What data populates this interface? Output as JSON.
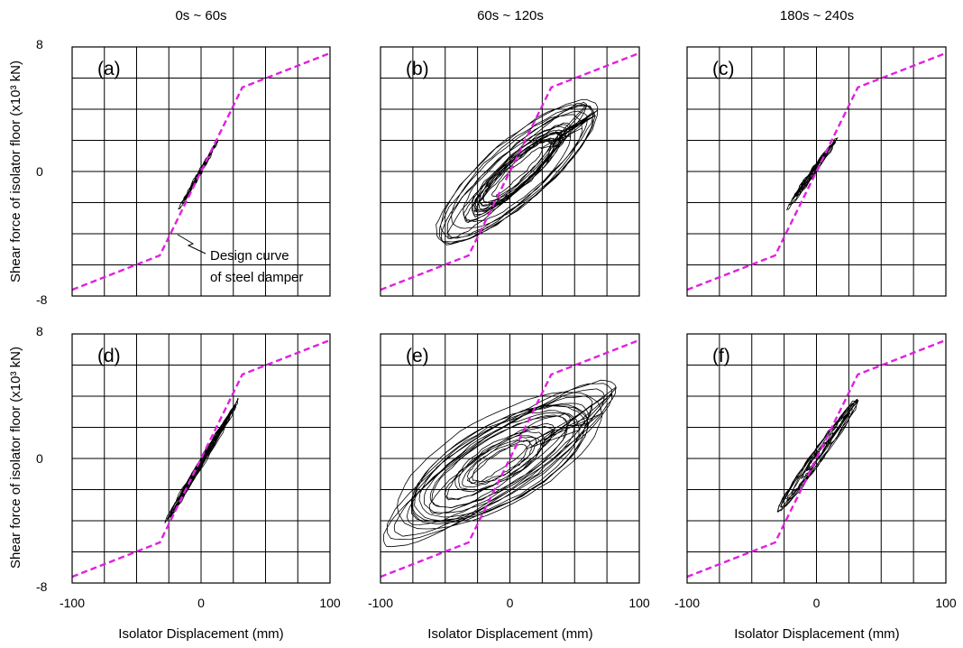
{
  "figure": {
    "column_titles": [
      "0s ~ 60s",
      "60s ~ 120s",
      "180s ~ 240s"
    ],
    "xlabel": "Isolator Displacement (mm)",
    "ylabel": "Shear force of isolator floor (x10³ kN)",
    "annotation": [
      "Design curve",
      "of steel damper"
    ],
    "design_color": "#e020e0"
  },
  "chart_data": [
    {
      "id": "a",
      "label": "(a)",
      "type": "line",
      "xlim": [
        -100,
        100
      ],
      "ylim": [
        -8,
        8
      ],
      "xticks": [
        -100,
        0,
        100
      ],
      "yticks": [
        -8,
        0,
        8
      ],
      "grid": true,
      "design_curve": {
        "x": [
          -100,
          -32,
          32,
          100
        ],
        "y": [
          -7.6,
          -5.4,
          5.4,
          7.6
        ]
      },
      "hysteresis": {
        "dmin": -17,
        "dmax": 13,
        "fmin": -2.6,
        "fmax": 2.1,
        "cycles": 8,
        "width": 0.06
      }
    },
    {
      "id": "b",
      "label": "(b)",
      "type": "line",
      "xlim": [
        -100,
        100
      ],
      "ylim": [
        -8,
        8
      ],
      "xticks": [
        -100,
        0,
        100
      ],
      "yticks": [
        -8,
        0,
        8
      ],
      "grid": true,
      "design_curve": {
        "x": [
          -100,
          -32,
          32,
          100
        ],
        "y": [
          -7.6,
          -5.4,
          5.4,
          7.6
        ]
      },
      "hysteresis": {
        "dmin": -57,
        "dmax": 68,
        "fmin": -6.4,
        "fmax": 6.3,
        "cycles": 22,
        "width": 0.35
      }
    },
    {
      "id": "c",
      "label": "(c)",
      "type": "line",
      "xlim": [
        -100,
        100
      ],
      "ylim": [
        -8,
        8
      ],
      "xticks": [
        -100,
        0,
        100
      ],
      "yticks": [
        -8,
        0,
        8
      ],
      "grid": true,
      "design_curve": {
        "x": [
          -100,
          -32,
          32,
          100
        ],
        "y": [
          -7.6,
          -5.4,
          5.4,
          7.6
        ]
      },
      "hysteresis": {
        "dmin": -23,
        "dmax": 16,
        "fmin": -2.6,
        "fmax": 2.4,
        "cycles": 8,
        "width": 0.1
      }
    },
    {
      "id": "d",
      "label": "(d)",
      "type": "line",
      "xlim": [
        -100,
        100
      ],
      "ylim": [
        -8,
        8
      ],
      "xticks": [
        -100,
        0,
        100
      ],
      "yticks": [
        -8,
        0,
        8
      ],
      "grid": true,
      "design_curve": {
        "x": [
          -100,
          -32,
          32,
          100
        ],
        "y": [
          -7.6,
          -5.4,
          5.4,
          7.6
        ]
      },
      "hysteresis": {
        "dmin": -28,
        "dmax": 29,
        "fmin": -4.4,
        "fmax": 4.0,
        "cycles": 10,
        "width": 0.06
      }
    },
    {
      "id": "e",
      "label": "(e)",
      "type": "line",
      "xlim": [
        -100,
        100
      ],
      "ylim": [
        -8,
        8
      ],
      "xticks": [
        -100,
        0,
        100
      ],
      "yticks": [
        -8,
        0,
        8
      ],
      "grid": true,
      "design_curve": {
        "x": [
          -100,
          -32,
          32,
          100
        ],
        "y": [
          -7.6,
          -5.4,
          5.4,
          7.6
        ]
      },
      "hysteresis": {
        "dmin": -98,
        "dmax": 82,
        "fmin": -7.3,
        "fmax": 6.8,
        "cycles": 22,
        "width": 0.45
      }
    },
    {
      "id": "f",
      "label": "(f)",
      "type": "line",
      "xlim": [
        -100,
        100
      ],
      "ylim": [
        -8,
        8
      ],
      "xticks": [
        -100,
        0,
        100
      ],
      "yticks": [
        -8,
        0,
        8
      ],
      "grid": true,
      "design_curve": {
        "x": [
          -100,
          -32,
          32,
          100
        ],
        "y": [
          -7.6,
          -5.4,
          5.4,
          7.6
        ]
      },
      "hysteresis": {
        "dmin": -30,
        "dmax": 32,
        "fmin": -4.0,
        "fmax": 4.3,
        "cycles": 10,
        "width": 0.15
      }
    }
  ]
}
